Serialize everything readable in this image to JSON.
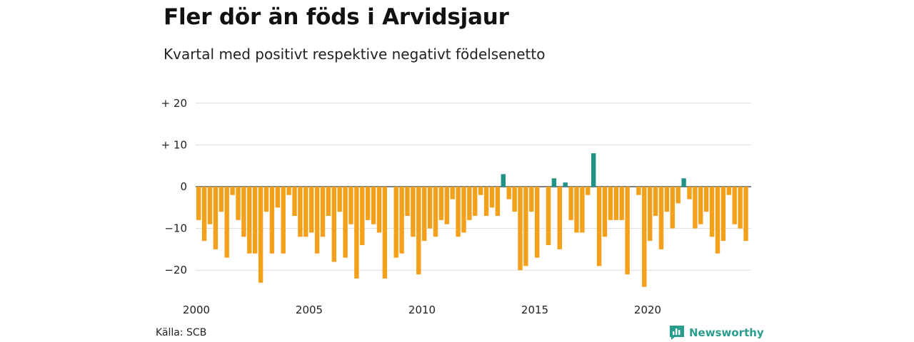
{
  "title": "Fler dör än föds i Arvidsjaur",
  "subtitle": "Kvartal med positivt respektive negativt födelsenetto",
  "source": "Källa: SCB",
  "brand": "Newsworthy",
  "colors": {
    "negative": "#f5a01a",
    "positive": "#1f9386",
    "grid": "#dddddd",
    "brand": "#2a9d8f"
  },
  "chart_data": {
    "type": "bar",
    "start_year": 2000,
    "start_quarter": 1,
    "frequency": "quarterly",
    "ylim": [
      -25,
      22
    ],
    "y_ticks": [
      20,
      10,
      0,
      -10,
      -20
    ],
    "y_tick_labels": [
      "+ 20",
      "+ 10",
      "0",
      "−10",
      "−20"
    ],
    "x_tick_labels": [
      "2000",
      "2005",
      "2010",
      "2015",
      "2020"
    ],
    "grid": true,
    "legend": "none",
    "values": [
      -8,
      -13,
      -9,
      -15,
      -6,
      -17,
      -2,
      -8,
      -12,
      -16,
      -16,
      -23,
      -6,
      -16,
      -5,
      -16,
      -2,
      -7,
      -12,
      -12,
      -11,
      -16,
      -12,
      -7,
      -18,
      -6,
      -17,
      -9,
      -22,
      -14,
      -8,
      -9,
      -11,
      -22,
      0,
      -17,
      -16,
      -7,
      -12,
      -21,
      -13,
      -10,
      -12,
      -8,
      -9,
      -3,
      -12,
      -11,
      -8,
      -7,
      -2,
      -7,
      -5,
      -7,
      3,
      -3,
      -6,
      -20,
      -19,
      -6,
      -17,
      0,
      -14,
      2,
      -15,
      1,
      -8,
      -11,
      -11,
      -2,
      8,
      -19,
      -12,
      -8,
      -8,
      -8,
      -21,
      0,
      -2,
      -24,
      -13,
      -7,
      -15,
      -6,
      -10,
      -4,
      2,
      -3,
      -10,
      -9,
      -6,
      -12,
      -16,
      -13,
      -2,
      -9,
      -10,
      -13
    ]
  }
}
